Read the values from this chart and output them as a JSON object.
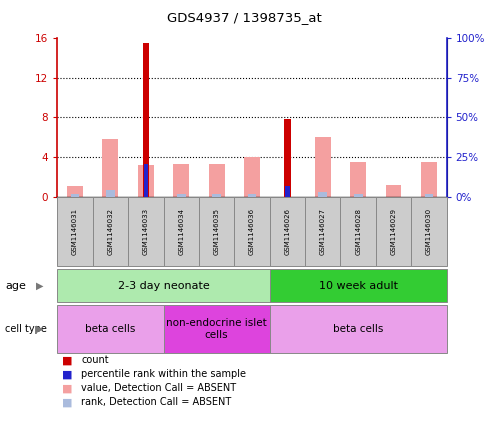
{
  "title": "GDS4937 / 1398735_at",
  "samples": [
    "GSM1146031",
    "GSM1146032",
    "GSM1146033",
    "GSM1146034",
    "GSM1146035",
    "GSM1146036",
    "GSM1146026",
    "GSM1146027",
    "GSM1146028",
    "GSM1146029",
    "GSM1146030"
  ],
  "count_values": [
    0,
    0,
    15.5,
    0,
    0,
    0,
    7.8,
    0,
    0,
    0,
    0
  ],
  "rank_values": [
    0,
    0,
    20.5,
    0,
    0,
    0,
    6.5,
    0,
    0,
    0,
    0
  ],
  "absent_value": [
    1.1,
    5.8,
    3.2,
    3.3,
    3.3,
    4.0,
    0,
    6.0,
    3.5,
    1.2,
    3.5
  ],
  "absent_rank": [
    1.8,
    4.0,
    0,
    1.5,
    1.5,
    1.5,
    0,
    3.0,
    1.5,
    0,
    1.5
  ],
  "ylim_left": [
    0,
    16
  ],
  "ylim_right": [
    0,
    100
  ],
  "yticks_left": [
    0,
    4,
    8,
    12,
    16
  ],
  "yticks_right": [
    0,
    25,
    50,
    75,
    100
  ],
  "ytick_labels_left": [
    "0",
    "4",
    "8",
    "12",
    "16"
  ],
  "ytick_labels_right": [
    "0%",
    "25%",
    "50%",
    "75%",
    "100%"
  ],
  "color_count": "#CC0000",
  "color_rank": "#2222CC",
  "color_absent_value": "#F4A0A0",
  "color_absent_rank": "#AABBDD",
  "age_groups": [
    {
      "label": "2-3 day neonate",
      "start": 0,
      "end": 6,
      "color": "#AEEAAE"
    },
    {
      "label": "10 week adult",
      "start": 6,
      "end": 11,
      "color": "#33CC33"
    }
  ],
  "cell_type_groups": [
    {
      "label": "beta cells",
      "start": 0,
      "end": 3,
      "color": "#EAA0EA"
    },
    {
      "label": "non-endocrine islet\ncells",
      "start": 3,
      "end": 6,
      "color": "#DD44DD"
    },
    {
      "label": "beta cells",
      "start": 6,
      "end": 11,
      "color": "#EAA0EA"
    }
  ],
  "legend_items": [
    {
      "label": "count",
      "color": "#CC0000"
    },
    {
      "label": "percentile rank within the sample",
      "color": "#2222CC"
    },
    {
      "label": "value, Detection Call = ABSENT",
      "color": "#F4A0A0"
    },
    {
      "label": "rank, Detection Call = ABSENT",
      "color": "#AABBDD"
    }
  ]
}
